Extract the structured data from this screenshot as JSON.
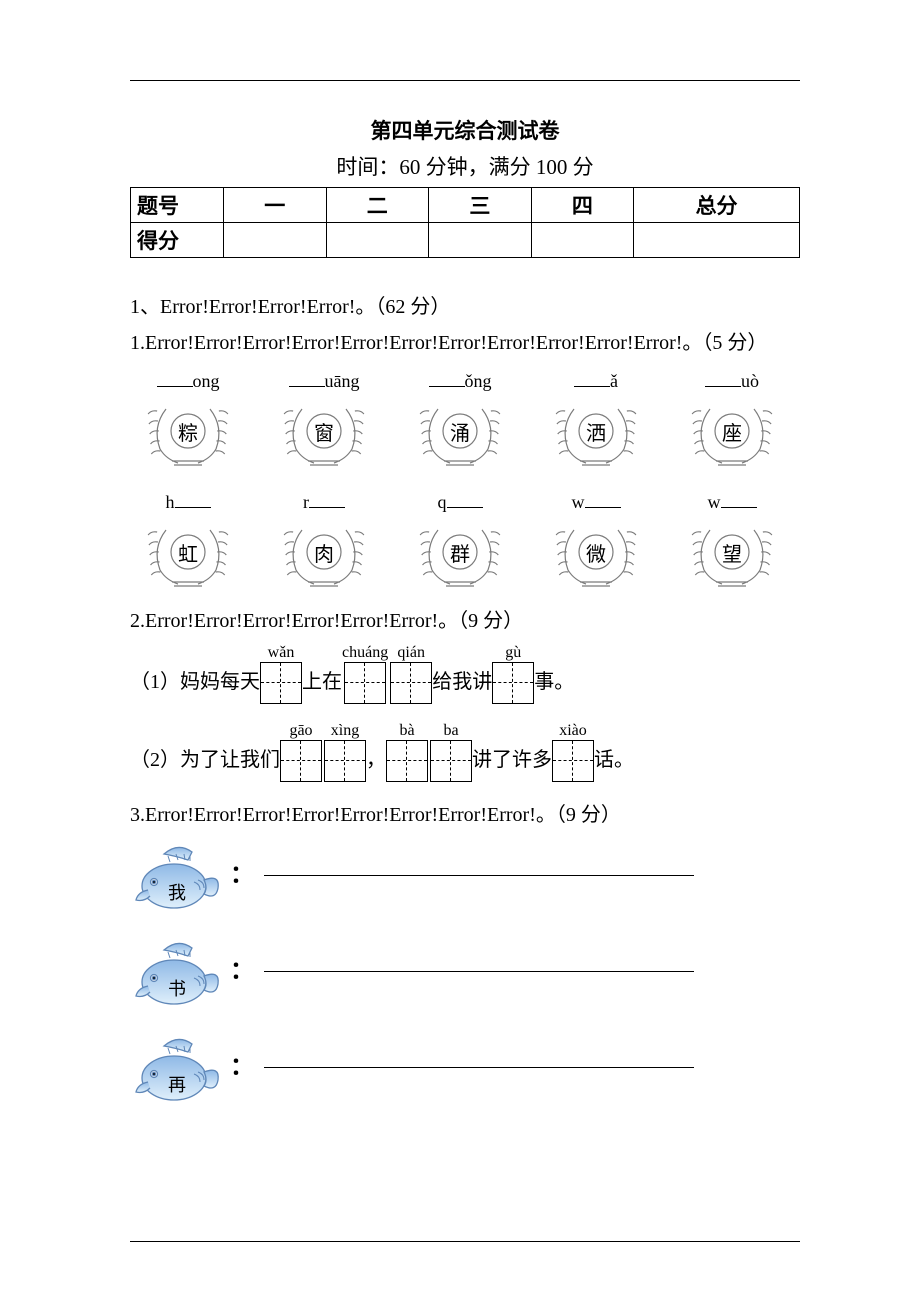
{
  "title": "第四单元综合测试卷",
  "subtitle_prefix": "时间：",
  "subtitle_time": "60 分钟，",
  "subtitle_score": "满分 100 分",
  "score_table": {
    "row1": [
      "题号",
      "一",
      "二",
      "三",
      "四",
      "总分"
    ],
    "row2_label": "得分"
  },
  "section1_header": "1、Error!Error!Error!Error!。（62 分）",
  "q1": "1.Error!Error!Error!Error!Error!Error!Error!Error!Error!Error!Error!。（5 分）",
  "q1_row1": [
    {
      "blank_before": true,
      "pin": "ong",
      "char": "粽"
    },
    {
      "blank_before": true,
      "pin": "uāng",
      "char": "窗"
    },
    {
      "blank_before": true,
      "pin": "ǒng",
      "char": "涌"
    },
    {
      "blank_before": true,
      "pin": "ǎ",
      "char": "洒"
    },
    {
      "blank_before": true,
      "pin": "uò",
      "char": "座"
    }
  ],
  "q1_row2": [
    {
      "pin": "h",
      "blank_after": true,
      "char": "虹"
    },
    {
      "pin": "r",
      "blank_after": true,
      "char": "肉"
    },
    {
      "pin": "q",
      "blank_after": true,
      "char": "群"
    },
    {
      "pin": "w",
      "blank_after": true,
      "char": "微"
    },
    {
      "pin": "w",
      "blank_after": true,
      "char": "望"
    }
  ],
  "q2": "2.Error!Error!Error!Error!Error!Error!。（9 分）",
  "q2_s1": {
    "lead": "（1）妈妈每天",
    "b1": [
      {
        "p": "wǎn"
      }
    ],
    "mid1": "上在",
    "b2": [
      {
        "p": "chuáng"
      },
      {
        "p": "qián"
      }
    ],
    "mid2": "给我讲",
    "b3": [
      {
        "p": "gù"
      }
    ],
    "tail": "事。"
  },
  "q2_s2": {
    "lead": "（2）为了让我们",
    "b1": [
      {
        "p": "gāo"
      },
      {
        "p": "xìng"
      }
    ],
    "mid1": "，",
    "b2": [
      {
        "p": "bà"
      },
      {
        "p": "ba"
      }
    ],
    "mid2": "讲了许多",
    "b3": [
      {
        "p": "xiào"
      }
    ],
    "tail": "话。"
  },
  "q3": "3.Error!Error!Error!Error!Error!Error!Error!Error!。（9 分）",
  "fish": [
    "我",
    "书",
    "再"
  ],
  "colors": {
    "wreath_stroke": "#7b7b7b",
    "fish_body_light": "#dfeffb",
    "fish_body_dark": "#8fb9e6",
    "fish_stroke": "#5f87b8"
  }
}
